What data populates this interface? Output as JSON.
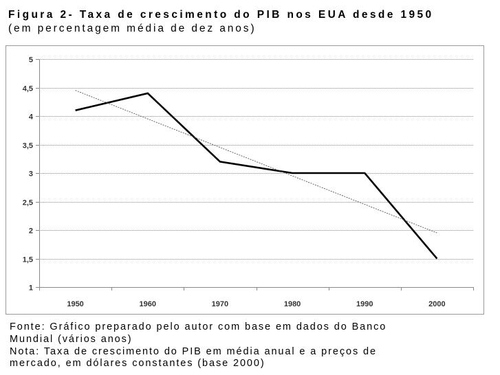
{
  "figure": {
    "title": "Figura 2- Taxa de crescimento do PIB nos EUA desde 1950",
    "subtitle": "(em percentagem média de dez anos)"
  },
  "notes": {
    "source_line1": "Fonte: Gráfico preparado pelo autor com base em dados do Banco",
    "source_line2": "Mundial (vários anos)",
    "note_line1": "Nota: Taxa de crescimento do PIB em média anual e a preços de",
    "note_line2": "mercado, em dólares constantes (base 2000)"
  },
  "chart_data": {
    "type": "line",
    "x": [
      "1950",
      "1960",
      "1970",
      "1980",
      "1990",
      "2000"
    ],
    "series": [
      {
        "values": [
          4.1,
          4.4,
          3.2,
          3.0,
          3.0,
          1.5
        ],
        "color": "#000000",
        "style": "solid"
      },
      {
        "values": [
          4.45,
          3.95,
          3.45,
          2.95,
          2.45,
          1.95
        ],
        "color": "#555555",
        "style": "thin-trendline"
      }
    ],
    "ylim": [
      1,
      5
    ],
    "yticks": [
      "1",
      "1,5",
      "2",
      "2,5",
      "3",
      "3,5",
      "4",
      "4,5",
      "5"
    ],
    "ytick_values": [
      1,
      1.5,
      2,
      2.5,
      3,
      3.5,
      4,
      4.5,
      5
    ],
    "grid": true,
    "legend": "none"
  }
}
